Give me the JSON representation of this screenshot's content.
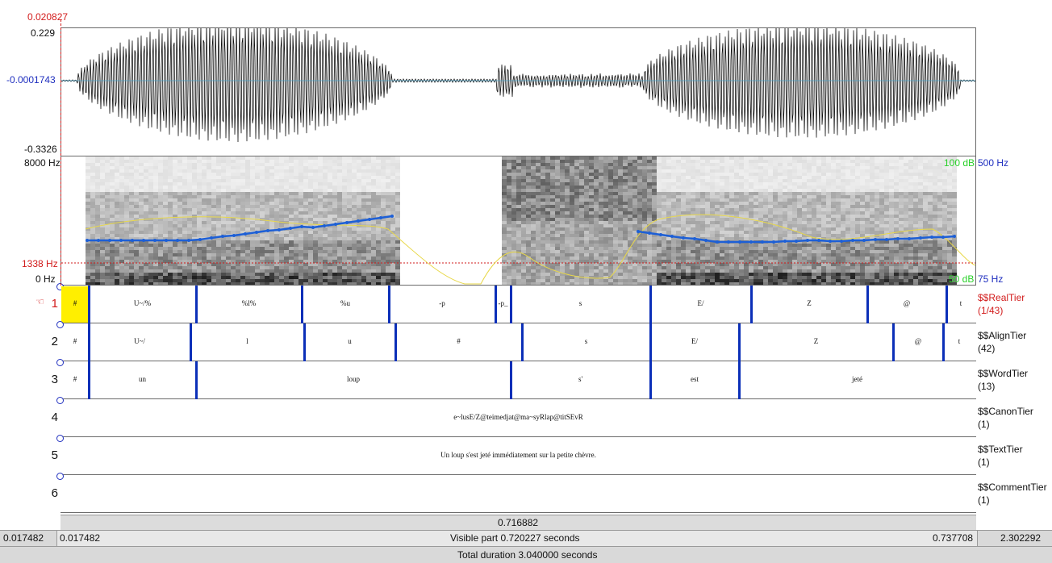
{
  "cursor": {
    "time": "0.020827"
  },
  "waveform": {
    "max_label": "0.229",
    "zero_label": "-0.0001743",
    "min_label": "-0.3326"
  },
  "spectrogram": {
    "freq_top": "8000 Hz",
    "freq_bottom": "0 Hz",
    "freq_cursor": "1338 Hz",
    "intensity_top": "100 dB",
    "intensity_bottom": "50 dB",
    "pitch_top": "500 Hz",
    "pitch_bottom": "75 Hz"
  },
  "tiers": [
    {
      "number": "1",
      "name": "$$RealTier",
      "count": "(1/43)",
      "selected": true,
      "intervals": [
        "#",
        "U~/%",
        "%l%",
        "%u",
        "-p",
        "-p_",
        "s",
        "E/",
        "Z",
        "@",
        "t"
      ]
    },
    {
      "number": "2",
      "name": "$$AlignTier",
      "count": "(42)",
      "intervals": [
        "#",
        "U~/",
        "l",
        "u",
        "#",
        "s",
        "E/",
        "Z",
        "@",
        "t"
      ]
    },
    {
      "number": "3",
      "name": "$$WordTier",
      "count": "(13)",
      "intervals": [
        "#",
        "un",
        "loup",
        "s'",
        "est",
        "jeté"
      ]
    },
    {
      "number": "4",
      "name": "$$CanonTier",
      "count": "(1)",
      "intervals": [
        "e~lusE/Z@teimedjat@ma~syRlap@titSEvR"
      ]
    },
    {
      "number": "5",
      "name": "$$TextTier",
      "count": "(1)",
      "intervals": [
        "Un loup s'est jeté immédiatement sur la petite chèvre."
      ]
    },
    {
      "number": "6",
      "name": "$$CommentTier",
      "count": "(1)",
      "intervals": [
        ""
      ]
    }
  ],
  "selection": {
    "duration": "0.716882"
  },
  "visible_bar": {
    "left_outside": "0.017482",
    "start": "0.017482",
    "label": "Visible part 0.720227 seconds",
    "end": "0.737708",
    "right_outside": "2.302292"
  },
  "total_bar": {
    "label": "Total duration 3.040000 seconds"
  },
  "colors": {
    "boundary": "#0b2fb8",
    "pitch": "#1d5fd6",
    "intensity": "#e8d84a",
    "cursor": "#d21b1b",
    "selected_interval": "#ffef00"
  }
}
